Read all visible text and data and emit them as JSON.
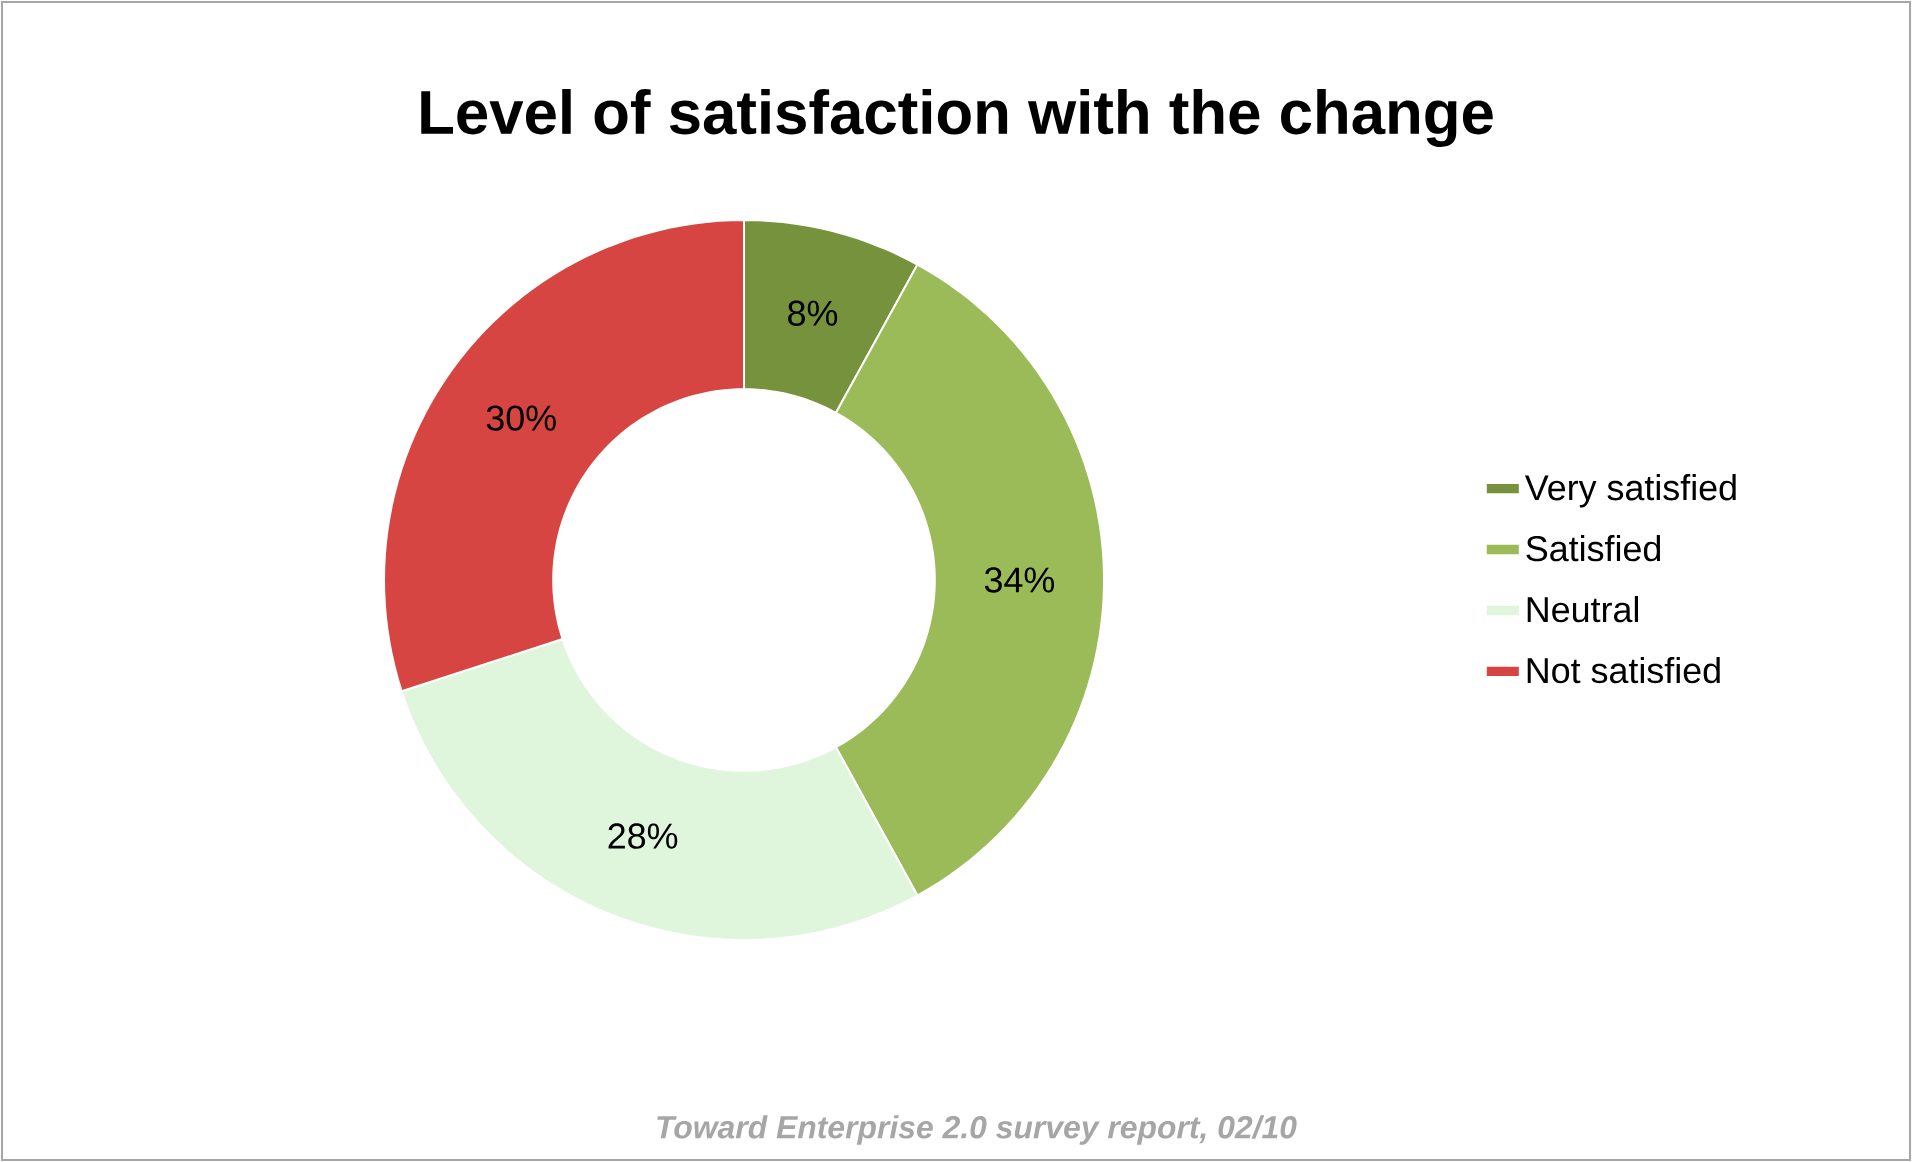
{
  "chart_data": {
    "type": "donut",
    "title": "Level of satisfaction with the change",
    "categories": [
      "Very satisfied",
      "Satisfied",
      "Neutral",
      "Not satisfied"
    ],
    "values": [
      8,
      34,
      28,
      30
    ],
    "colors": [
      "#76923c",
      "#9bbb59",
      "#dff5dc",
      "#d64541"
    ],
    "value_labels": [
      "8%",
      "34%",
      "28%",
      "30%"
    ],
    "legend": "right",
    "annotations": [
      "Toward Enterprise 2.0 survey report, 02/10"
    ]
  }
}
